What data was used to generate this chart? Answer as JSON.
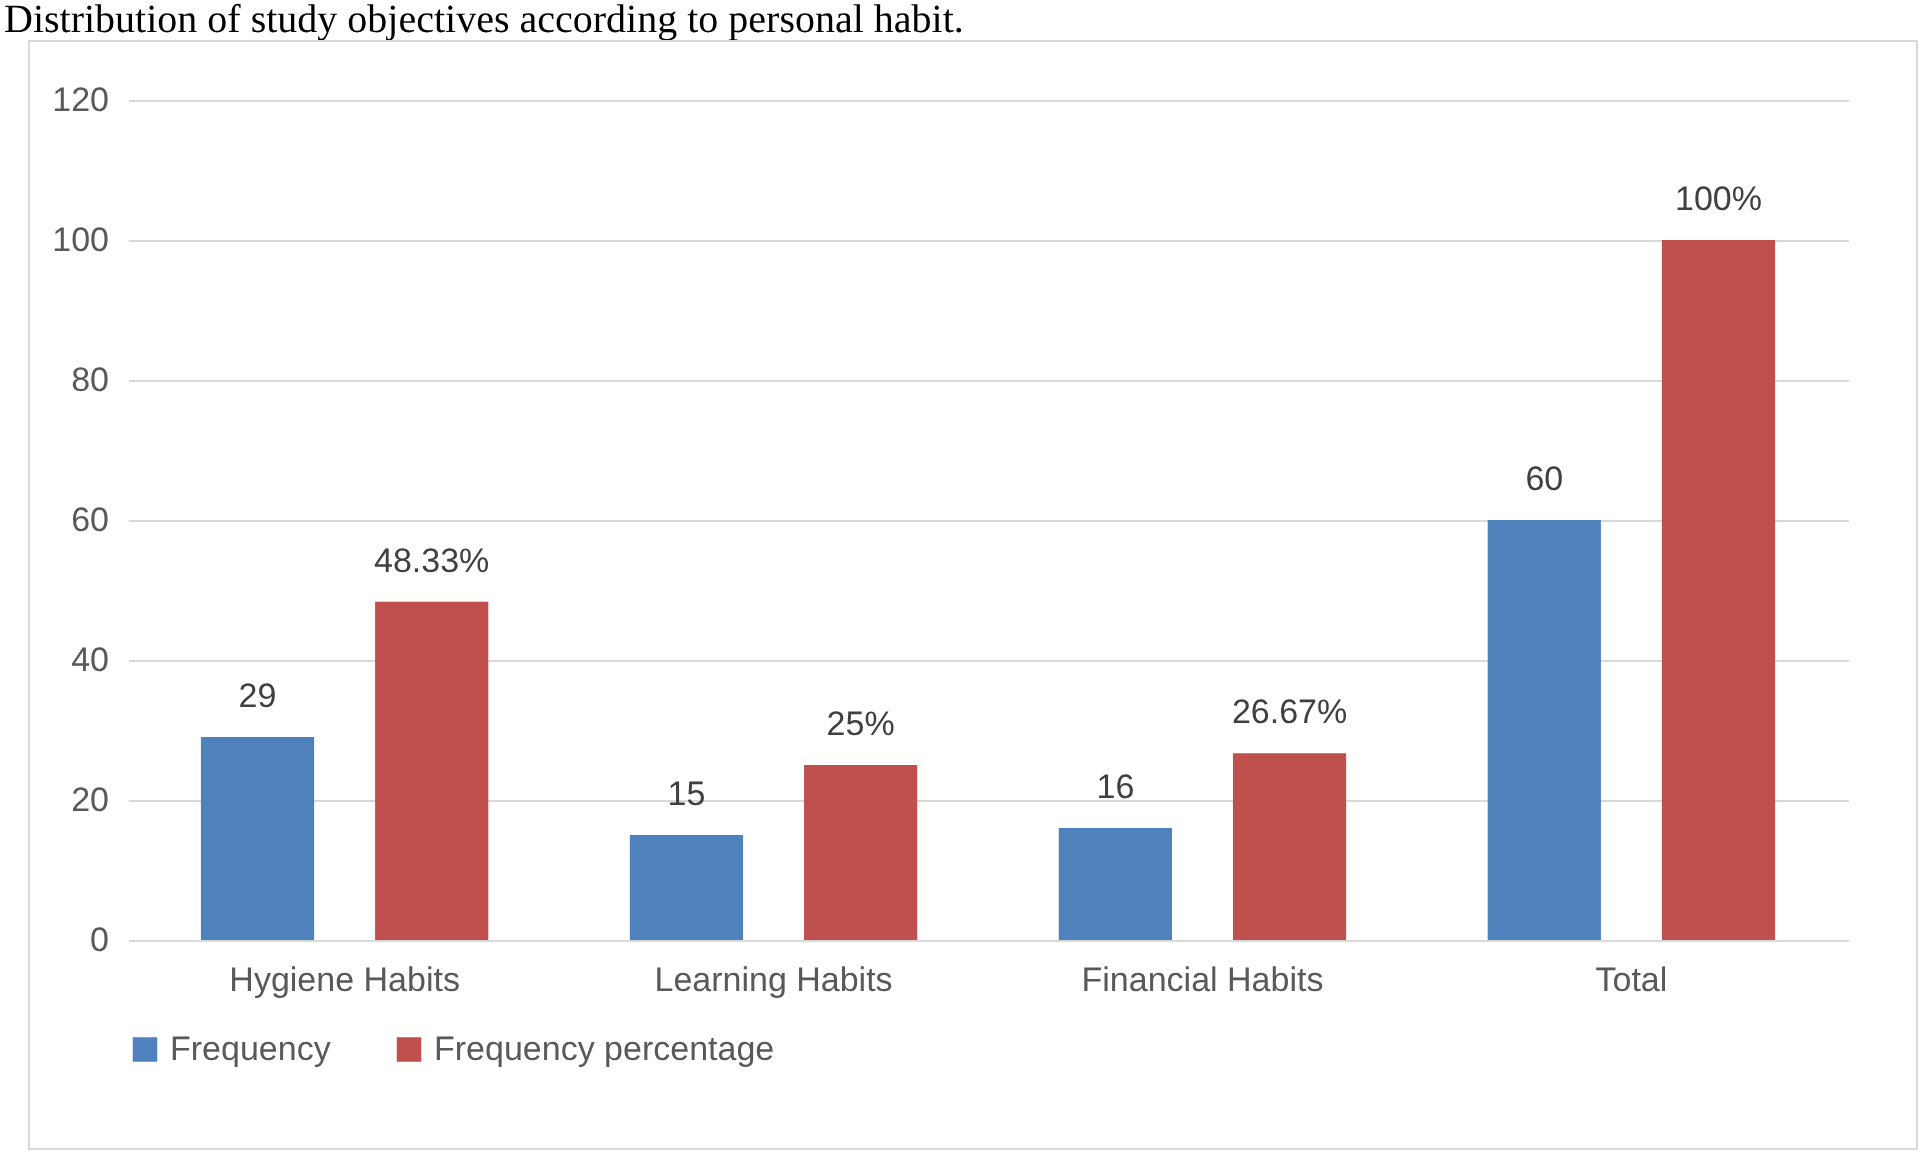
{
  "chart_data": {
    "type": "bar",
    "title": "Distribution of study objectives according to personal habit.",
    "categories": [
      "Hygiene Habits",
      "Learning Habits",
      "Financial Habits",
      "Total"
    ],
    "series": [
      {
        "name": "Frequency",
        "color": "#4f81bd",
        "values": [
          29,
          15,
          16,
          60
        ],
        "value_labels": [
          "29",
          "15",
          "16",
          "60"
        ]
      },
      {
        "name": "Frequency percentage",
        "color": "#c0504d",
        "values": [
          48.33,
          25,
          26.67,
          100
        ],
        "value_labels": [
          "48.33%",
          "25%",
          "26.67%",
          "100%"
        ]
      }
    ],
    "ylim": [
      0,
      120
    ],
    "yticks": [
      0,
      20,
      40,
      60,
      80,
      100,
      120
    ],
    "grid": "y",
    "legend": "bottom"
  }
}
